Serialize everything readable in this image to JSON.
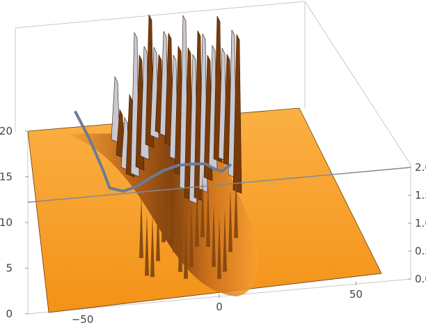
{
  "chart_data": {
    "type": "surface3d",
    "title": "",
    "xlabel": "",
    "ylabel": "",
    "zlabel": "",
    "x_ticks": [
      -50,
      0,
      50
    ],
    "z_ticks_left": [
      0,
      5,
      10,
      15,
      20
    ],
    "z_ticks_right": [
      "0.0",
      "0.5",
      "1.0",
      "1.5",
      "2.0"
    ],
    "xlim": [
      -70,
      70
    ],
    "zlim": [
      0,
      22
    ],
    "surface": {
      "description_values": "sech-shaped ridge of height ~21 along the viewing axis, with oscillating spikes in the central region",
      "color": "#f7a02a",
      "shadow_color": "#7a3a08"
    },
    "curve": {
      "color": "#6c7b92",
      "points_x": [
        -50,
        -45,
        -40,
        -35,
        -30,
        -25,
        -20,
        -15,
        -10,
        -5,
        0,
        3,
        6,
        9
      ],
      "points_z": [
        20.0,
        17.0,
        13.4,
        11.3,
        10.8,
        11.2,
        12.0,
        12.7,
        13.1,
        13.1,
        13.0,
        12.4,
        12.0,
        12.6
      ]
    },
    "grid": false,
    "box": true
  }
}
